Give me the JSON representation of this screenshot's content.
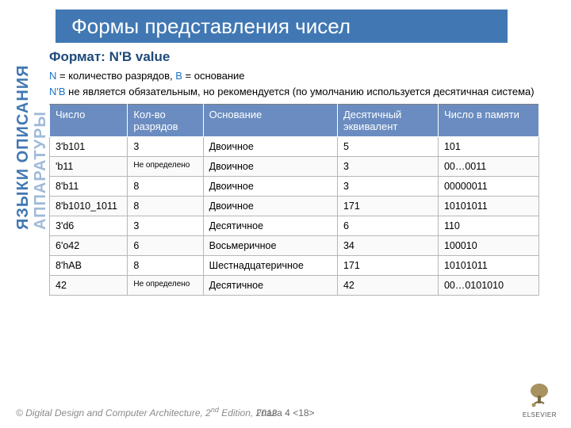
{
  "title": "Формы представления чисел",
  "sidebar_line1": "ЯЗЫКИ ОПИСАНИЯ",
  "sidebar_line2": "АППАРАТУРЫ",
  "format_heading": "Формат: N'B value",
  "desc1_pre": "N",
  "desc1_mid": " = количество разрядов, ",
  "desc1_b": "B",
  "desc1_end": " = основание",
  "desc2_pre": "N'B",
  "desc2_end": "  не является обязательным, но рекомендуется  (по умолчанию используется десятичная система)",
  "table": {
    "headers": [
      "Число",
      "Кол-во разрядов",
      "Основание",
      "Десятичный эквивалент",
      "Число в памяти"
    ],
    "rows": [
      [
        "3'b101",
        "3",
        "Двоичное",
        "5",
        "101"
      ],
      [
        "'b11",
        "Не определено",
        "Двоичное",
        "3",
        "00…0011"
      ],
      [
        "8'b11",
        "8",
        "Двоичное",
        "3",
        "00000011"
      ],
      [
        "8'b1010_1011",
        "8",
        "Двоичное",
        "171",
        "10101011"
      ],
      [
        "3'd6",
        "3",
        "Десятичное",
        "6",
        "110"
      ],
      [
        "6'o42",
        "6",
        "Восьмеричное",
        "34",
        "100010"
      ],
      [
        "8'hAB",
        "8",
        "Шестнадцатеричное",
        "171",
        "10101011"
      ],
      [
        "42",
        "Не определено",
        "Десятичное",
        "42",
        "00…0101010"
      ]
    ],
    "small_cell_marker": "Не определено"
  },
  "footer": {
    "copyright_pre": "© ",
    "book": "Digital Design and Computer Architecture",
    "edition": ", 2",
    "edition_sup": "nd",
    "edition_end": " Edition, 2012",
    "chapter": "Глава 4 <18>",
    "publisher": "ELSEVIER"
  },
  "colors": {
    "accent": "#4178b3",
    "header_bg": "#6a8cc0"
  }
}
